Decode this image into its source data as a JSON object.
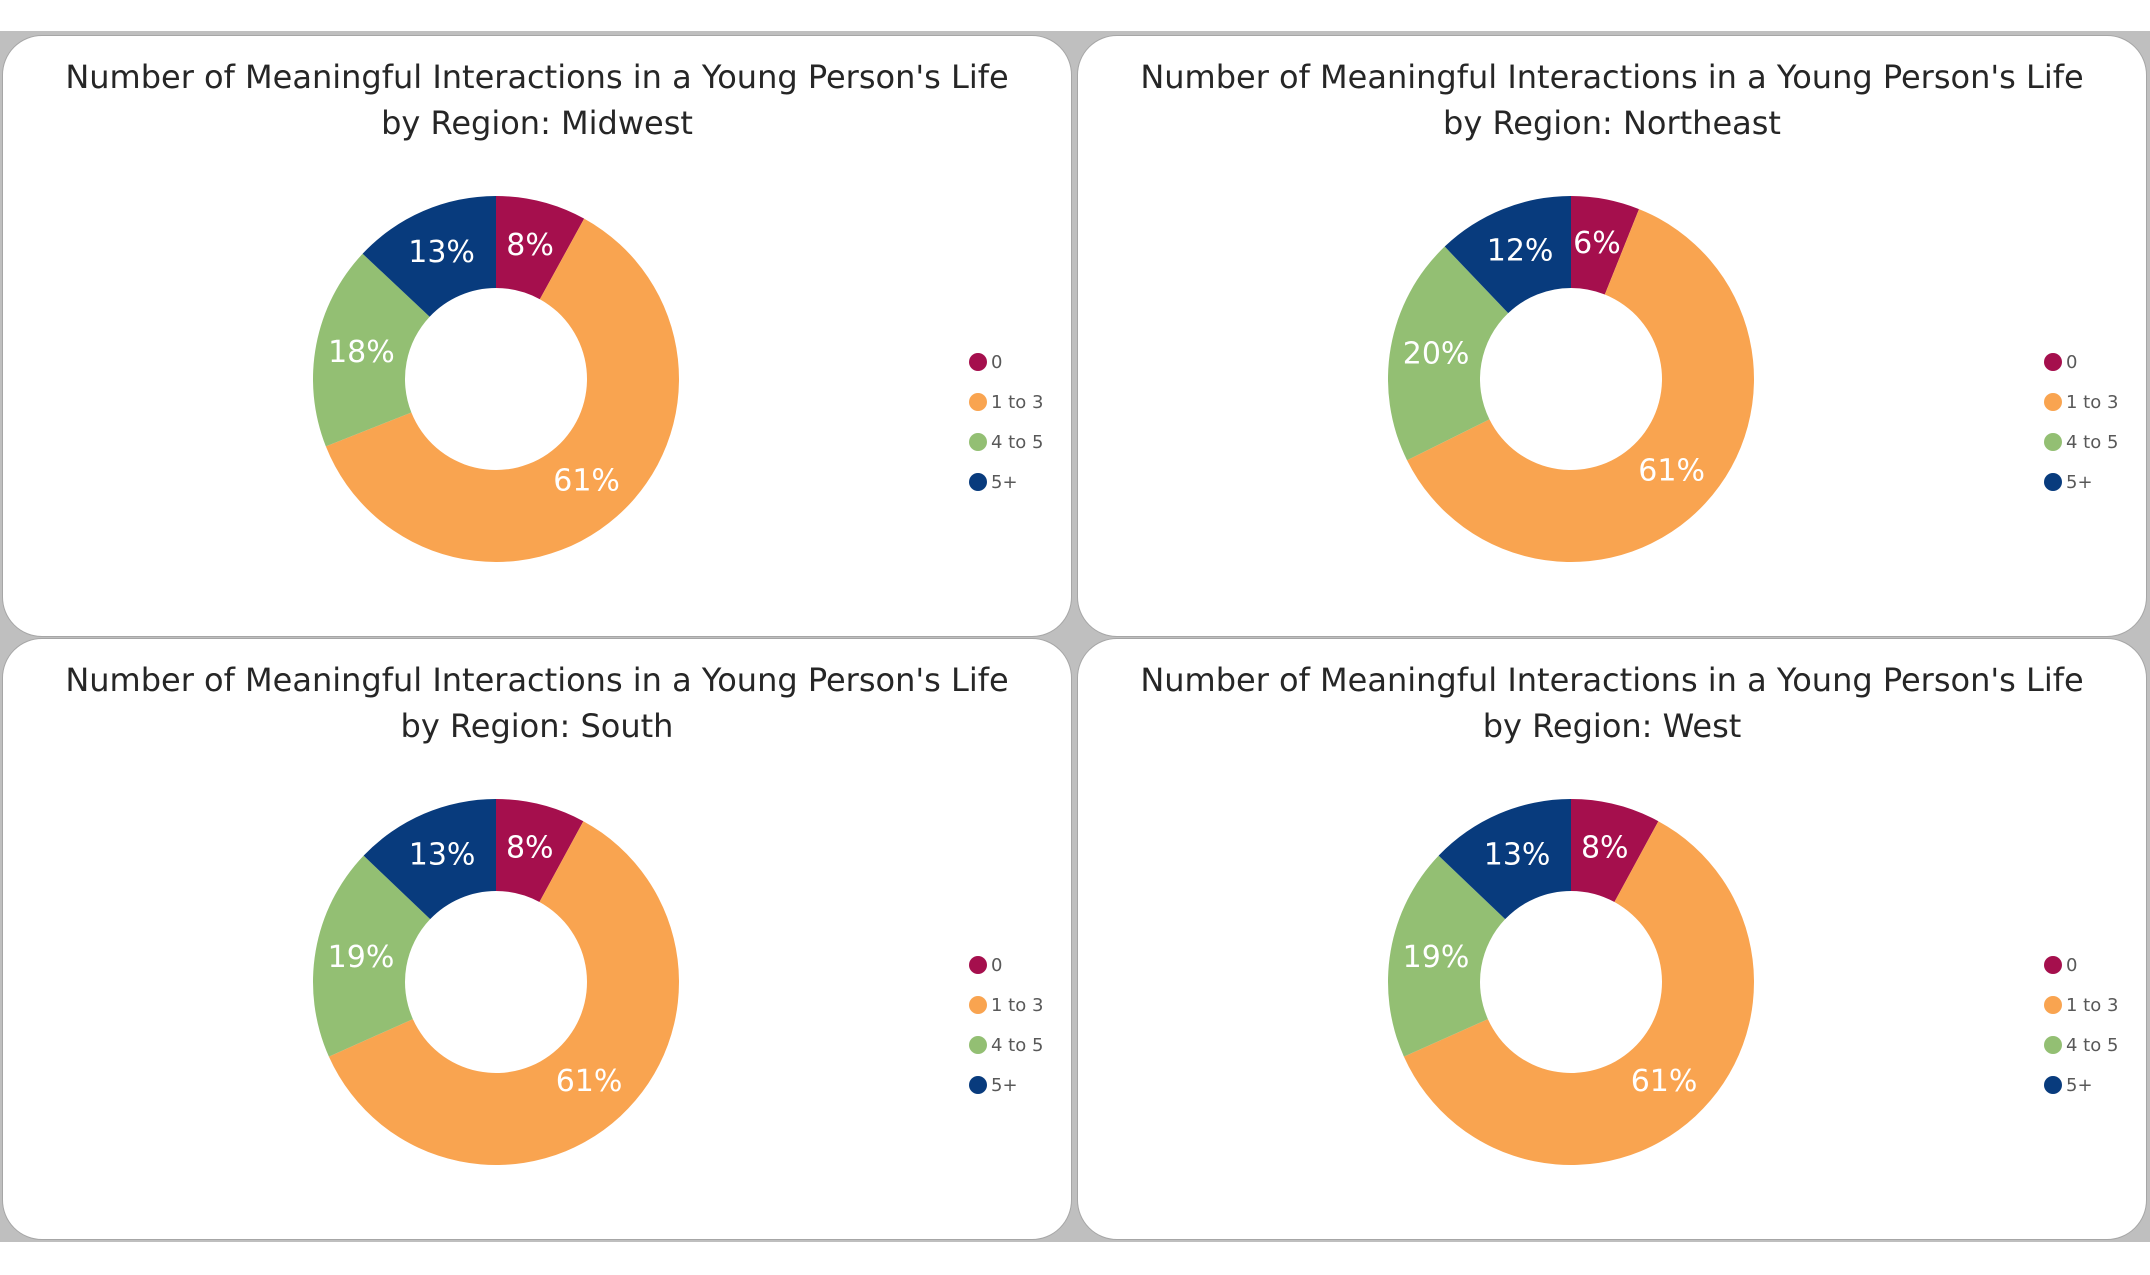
{
  "colors": {
    "0": "#A50F4D",
    "1 to 3": "#F9A450",
    "4 to 5": "#93BF73",
    "5+": "#083B7D"
  },
  "legend": [
    "0",
    "1 to 3",
    "4 to 5",
    "5+"
  ],
  "chart_data": [
    {
      "type": "pie",
      "subtype": "doughnut",
      "title": "Number of Meaningful Interactions in a Young Person's Life by Region: Midwest",
      "categories": [
        "0",
        "1 to 3",
        "4 to 5",
        "5+"
      ],
      "values": [
        8,
        61,
        18,
        13
      ],
      "labels": [
        "8%",
        "61%",
        "18%",
        "13%"
      ]
    },
    {
      "type": "pie",
      "subtype": "doughnut",
      "title": "Number of Meaningful Interactions in a Young Person's Life by Region: Northeast",
      "categories": [
        "0",
        "1 to 3",
        "4 to 5",
        "5+"
      ],
      "values": [
        6,
        61,
        20,
        12
      ],
      "labels": [
        "6%",
        "61%",
        "20%",
        "12%"
      ]
    },
    {
      "type": "pie",
      "subtype": "doughnut",
      "title": "Number of Meaningful Interactions in a Young Person's Life by Region: South",
      "categories": [
        "0",
        "1 to 3",
        "4 to 5",
        "5+"
      ],
      "values": [
        8,
        61,
        19,
        13
      ],
      "labels": [
        "8%",
        "61%",
        "19%",
        "13%"
      ]
    },
    {
      "type": "pie",
      "subtype": "doughnut",
      "title": "Number of Meaningful Interactions in a Young Person's Life by Region: West",
      "categories": [
        "0",
        "1 to 3",
        "4 to 5",
        "5+"
      ],
      "values": [
        8,
        61,
        19,
        13
      ],
      "labels": [
        "8%",
        "61%",
        "19%",
        "13%"
      ]
    }
  ]
}
